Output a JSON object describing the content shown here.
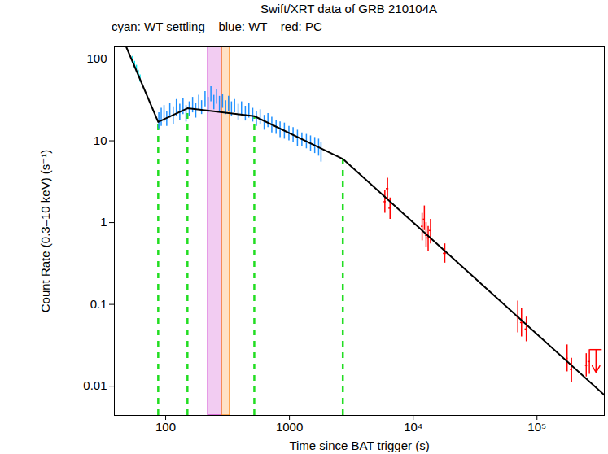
{
  "chart_data": {
    "type": "scatter",
    "title": "Swift/XRT data of GRB 210104A",
    "subtitle": "cyan: WT settling – blue: WT – red: PC",
    "x_label": "Time since BAT trigger (s)",
    "y_label": "Count Rate (0.3–10 keV) (s⁻¹)",
    "log": true,
    "grid": false,
    "xlim": [
      38.5,
      350000
    ],
    "ylim": [
      0.0044,
      141
    ],
    "xticks": [
      100,
      1000,
      {
        "value": 10000,
        "label": "10⁴"
      },
      {
        "value": 100000,
        "label": "10⁵"
      }
    ],
    "yticks": [
      0.01,
      0.1,
      1,
      10,
      100
    ],
    "series": [
      {
        "name": "WT settling",
        "color": "#00e5ee",
        "x": [
          54,
          56,
          58,
          60,
          62
        ],
        "values": [
          98,
          85,
          76,
          66,
          58
        ],
        "y_lo": [
          88,
          76,
          68,
          59,
          52
        ],
        "y_hi": [
          108,
          94,
          84,
          73,
          64
        ]
      },
      {
        "name": "WT",
        "color": "#1e90ff",
        "x": [
          88,
          92,
          97,
          102,
          108,
          115,
          122,
          130,
          138,
          146,
          155,
          165,
          175,
          185,
          195,
          208,
          220,
          232,
          245,
          258,
          272,
          288,
          305,
          322,
          340,
          360,
          385,
          410,
          440,
          470,
          505,
          540,
          580,
          625,
          670,
          720,
          780,
          840,
          910,
          990,
          1070,
          1160,
          1260,
          1370,
          1480,
          1600,
          1720,
          1800
        ],
        "values": [
          18,
          20,
          22,
          19,
          24,
          21,
          26,
          23,
          27,
          22,
          25,
          28,
          24,
          30,
          26,
          33,
          28,
          38,
          30,
          35,
          29,
          31,
          26,
          29,
          25,
          27,
          23,
          25,
          22,
          24,
          21,
          19,
          20,
          17,
          18,
          16,
          15,
          14,
          13.5,
          12.5,
          12,
          11,
          10.5,
          10,
          9.5,
          9,
          8.5,
          7.5
        ],
        "y_lo": [
          14,
          15,
          17,
          15,
          19,
          16,
          20,
          18,
          21,
          17,
          20,
          22,
          19,
          24,
          21,
          26,
          22,
          30,
          24,
          28,
          23,
          25,
          21,
          23,
          20,
          22,
          18,
          20,
          17.5,
          19,
          17,
          15,
          16,
          13.5,
          14.5,
          12.5,
          12,
          11,
          10.5,
          10,
          9.5,
          8.5,
          8.5,
          8,
          7.5,
          7,
          6.5,
          5.5
        ],
        "y_hi": [
          22,
          25,
          27,
          23,
          29,
          26,
          32,
          28,
          33,
          27,
          30,
          34,
          29,
          36,
          31,
          40,
          34,
          46,
          36,
          42,
          35,
          37,
          31,
          35,
          30,
          32,
          28,
          30,
          26.5,
          29,
          25,
          23,
          24,
          20.5,
          21.5,
          19.5,
          18,
          17,
          16.5,
          15,
          14.5,
          13.5,
          12.5,
          12,
          11.5,
          11,
          10.5,
          9.5
        ]
      },
      {
        "name": "PC",
        "color": "#ff0000",
        "x": [
          5900,
          6200,
          6500,
          11800,
          12300,
          12700,
          13200,
          13800,
          18000,
          70000,
          75000,
          82000,
          175000,
          190000,
          250000,
          265000
        ],
        "x_lo": [
          5800,
          6050,
          6350,
          11600,
          12050,
          12500,
          12950,
          13500,
          17500,
          69000,
          73500,
          80000,
          172000,
          186000,
          246000,
          258000
        ],
        "x_hi": [
          6050,
          6350,
          6650,
          12050,
          12500,
          12950,
          13500,
          14100,
          18500,
          71500,
          77000,
          84000,
          178000,
          194000,
          256000,
          270000
        ],
        "values": [
          1.8,
          2.6,
          1.5,
          0.9,
          1.1,
          0.7,
          0.65,
          0.8,
          0.42,
          0.07,
          0.06,
          0.05,
          0.022,
          0.016,
          0.018,
          0.02
        ],
        "y_lo": [
          1.3,
          1.9,
          1.1,
          0.6,
          0.8,
          0.5,
          0.45,
          0.55,
          0.32,
          0.045,
          0.04,
          0.035,
          0.015,
          0.011,
          0.013,
          0.014
        ],
        "y_hi": [
          2.5,
          3.5,
          2.0,
          1.3,
          1.6,
          1.0,
          0.9,
          1.1,
          0.55,
          0.11,
          0.09,
          0.07,
          0.032,
          0.022,
          0.025,
          0.028
        ],
        "upper_limits": {
          "x": [
            300000
          ],
          "values": [
            0.028
          ]
        }
      }
    ],
    "model": {
      "color": "#000000",
      "x": [
        48,
        87,
        150,
        520,
        2700,
        350000
      ],
      "values": [
        141,
        17,
        25,
        20,
        6,
        0.0078
      ]
    },
    "breaks": {
      "color": "#22dd22",
      "line_style": "dashed",
      "x": [
        87,
        150,
        520,
        2700
      ]
    },
    "intervals": [
      {
        "start": 220,
        "end": 284,
        "color": "#cc33cc"
      },
      {
        "start": 284,
        "end": 330,
        "color": "#ff8c1a"
      }
    ]
  }
}
